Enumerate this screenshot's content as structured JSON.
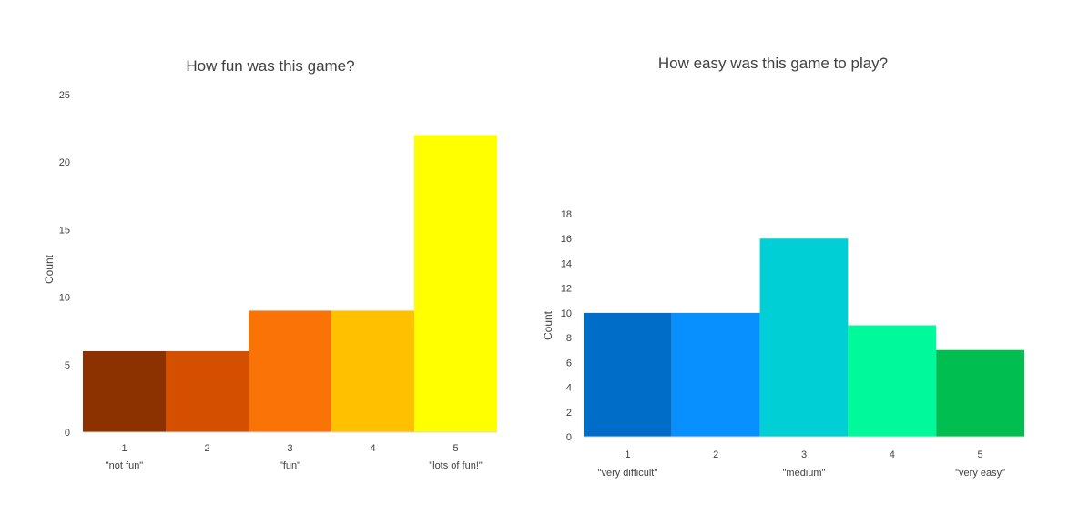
{
  "chart_data": [
    {
      "type": "bar",
      "title": "How fun was this game?",
      "xlabel": "",
      "ylabel": "Count",
      "ylim": [
        0,
        25
      ],
      "yticks": [
        0,
        5,
        10,
        15,
        20,
        25
      ],
      "grid": false,
      "categories": [
        "1",
        "2",
        "3",
        "4",
        "5"
      ],
      "category_sublabels": [
        "\"not fun\"",
        "",
        "\"fun\"",
        "",
        "\"lots of fun!\""
      ],
      "values": [
        6,
        6,
        9,
        9,
        22
      ],
      "colors": [
        "#8b3200",
        "#d44f00",
        "#fa7307",
        "#ffc000",
        "#ffff00"
      ]
    },
    {
      "type": "bar",
      "title": "How easy was this game to play?",
      "xlabel": "",
      "ylabel": "Count",
      "ylim": [
        0,
        18
      ],
      "yticks": [
        0,
        2,
        4,
        6,
        8,
        10,
        12,
        14,
        16,
        18
      ],
      "grid": false,
      "categories": [
        "1",
        "2",
        "3",
        "4",
        "5"
      ],
      "category_sublabels": [
        "\"very difficult\"",
        "",
        "\"medium\"",
        "",
        "\"very easy\""
      ],
      "values": [
        10,
        10,
        16,
        9,
        7
      ],
      "colors": [
        "#006ec9",
        "#0890ff",
        "#00d0d6",
        "#00f99a",
        "#00bf50"
      ]
    }
  ]
}
